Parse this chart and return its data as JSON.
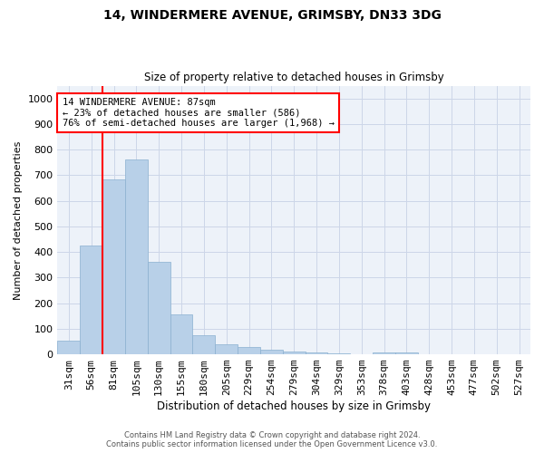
{
  "title1": "14, WINDERMERE AVENUE, GRIMSBY, DN33 3DG",
  "title2": "Size of property relative to detached houses in Grimsby",
  "xlabel": "Distribution of detached houses by size in Grimsby",
  "ylabel": "Number of detached properties",
  "footer1": "Contains HM Land Registry data © Crown copyright and database right 2024.",
  "footer2": "Contains public sector information licensed under the Open Government Licence v3.0.",
  "annotation_title": "14 WINDERMERE AVENUE: 87sqm",
  "annotation_line2": "← 23% of detached houses are smaller (586)",
  "annotation_line3": "76% of semi-detached houses are larger (1,968) →",
  "bar_values": [
    52,
    424,
    685,
    760,
    362,
    155,
    75,
    40,
    27,
    17,
    12,
    8,
    4,
    0,
    8,
    7,
    0,
    0,
    0,
    0,
    0
  ],
  "categories": [
    "31sqm",
    "56sqm",
    "81sqm",
    "105sqm",
    "130sqm",
    "155sqm",
    "180sqm",
    "205sqm",
    "229sqm",
    "254sqm",
    "279sqm",
    "304sqm",
    "329sqm",
    "353sqm",
    "378sqm",
    "403sqm",
    "428sqm",
    "453sqm",
    "477sqm",
    "502sqm",
    "527sqm"
  ],
  "bar_color": "#b8d0e8",
  "bar_edge_color": "#8ab0d0",
  "vline_color": "red",
  "vline_x": 2.0,
  "annotation_box_color": "red",
  "background_color": "#edf2f9",
  "grid_color": "#ccd6e8",
  "ylim": [
    0,
    1050
  ],
  "yticks": [
    0,
    100,
    200,
    300,
    400,
    500,
    600,
    700,
    800,
    900,
    1000
  ],
  "figsize": [
    6.0,
    5.0
  ],
  "dpi": 100
}
